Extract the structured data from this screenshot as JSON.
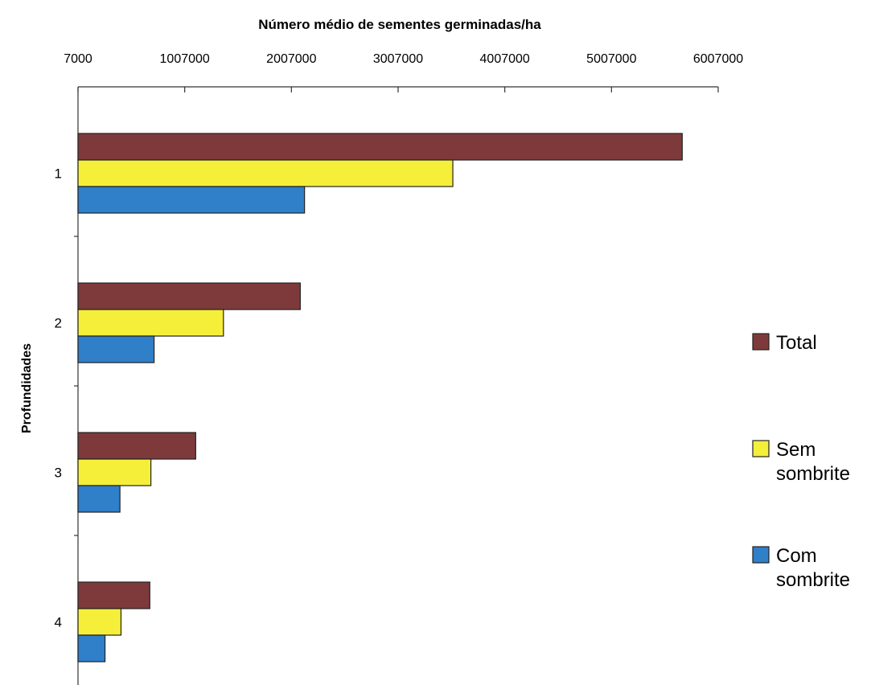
{
  "chart_data": {
    "type": "bar",
    "orientation": "horizontal",
    "title": "Número médio de sementes germinadas/ha",
    "xlabel": "Número médio de sementes germinadas/ha",
    "ylabel": "Profundidades",
    "xaxis_position": "top",
    "xlim": [
      7000,
      6007000
    ],
    "xticks": [
      7000,
      1007000,
      2007000,
      3007000,
      4007000,
      5007000,
      6007000
    ],
    "xtick_labels": [
      "7000",
      "1007000",
      "2007000",
      "3007000",
      "4007000",
      "5007000",
      "6007000"
    ],
    "categories": [
      "1",
      "2",
      "3",
      "4"
    ],
    "legend_position": "right",
    "grid": false,
    "series": [
      {
        "name": "Total",
        "color": "#7e3a3a",
        "values": [
          5670000,
          2090000,
          1110000,
          680000
        ]
      },
      {
        "name": "Sem sombrite",
        "color": "#f5ef3a",
        "values": [
          3520000,
          1370000,
          690000,
          410000
        ]
      },
      {
        "name": "Com sombrite",
        "color": "#2f7fc9",
        "values": [
          2130000,
          720000,
          400000,
          260000
        ]
      }
    ],
    "legend": [
      {
        "lines": [
          "Total"
        ],
        "color": "#7e3a3a"
      },
      {
        "lines": [
          "Sem",
          "sombrite"
        ],
        "color": "#f5ef3a"
      },
      {
        "lines": [
          "Com",
          "sombrite"
        ],
        "color": "#2f7fc9"
      }
    ]
  }
}
